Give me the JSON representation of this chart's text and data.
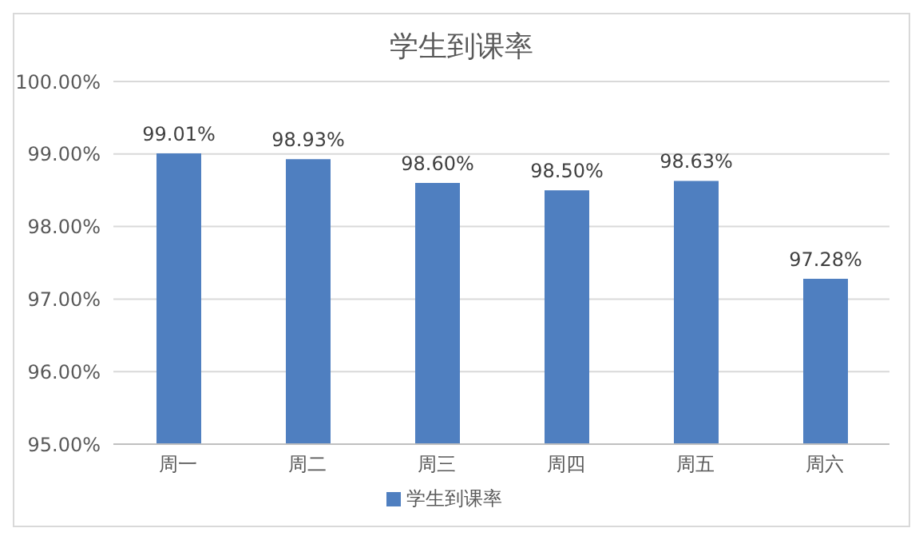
{
  "chart_data": {
    "type": "bar",
    "title": "学生到课率",
    "categories": [
      "周一",
      "周二",
      "周三",
      "周四",
      "周五",
      "周六"
    ],
    "series": [
      {
        "name": "学生到课率",
        "color": "#4f7fc0",
        "values": [
          99.01,
          98.93,
          98.6,
          98.5,
          98.63,
          97.28
        ],
        "value_labels": [
          "99.01%",
          "98.93%",
          "98.60%",
          "98.50%",
          "98.63%",
          "97.28%"
        ]
      }
    ],
    "ylim": [
      95,
      100
    ],
    "yticks": [
      {
        "value": 95,
        "label": "95.00%"
      },
      {
        "value": 96,
        "label": "96.00%"
      },
      {
        "value": 97,
        "label": "97.00%"
      },
      {
        "value": 98,
        "label": "98.00%"
      },
      {
        "value": 99,
        "label": "99.00%"
      },
      {
        "value": 100,
        "label": "100.00%"
      }
    ],
    "grid": "y",
    "legend": "bottom"
  }
}
